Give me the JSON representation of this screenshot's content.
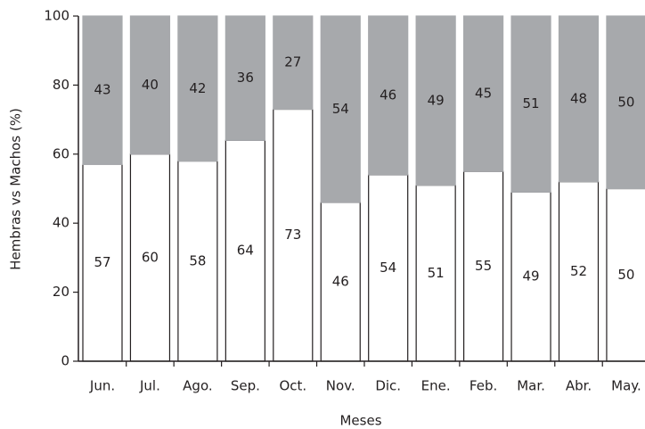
{
  "chart_data": {
    "type": "stacked-bar",
    "x_label": "Meses",
    "y_label": "Hembras vs Machos (%)",
    "categories": [
      "Jun.",
      "Jul.",
      "Ago.",
      "Sep.",
      "Oct.",
      "Nov.",
      "Dic.",
      "Ene.",
      "Feb.",
      "Mar.",
      "Abr.",
      "May."
    ],
    "series": [
      {
        "color": "#ffffff",
        "values": [
          57,
          60,
          58,
          64,
          73,
          46,
          54,
          51,
          55,
          49,
          52,
          50
        ]
      },
      {
        "color": "#a7a9ac",
        "values": [
          43,
          40,
          42,
          36,
          27,
          54,
          46,
          49,
          45,
          51,
          48,
          50
        ]
      }
    ],
    "ylim": [
      0,
      100
    ],
    "yticks": [
      0,
      20,
      40,
      60,
      80,
      100
    ]
  }
}
